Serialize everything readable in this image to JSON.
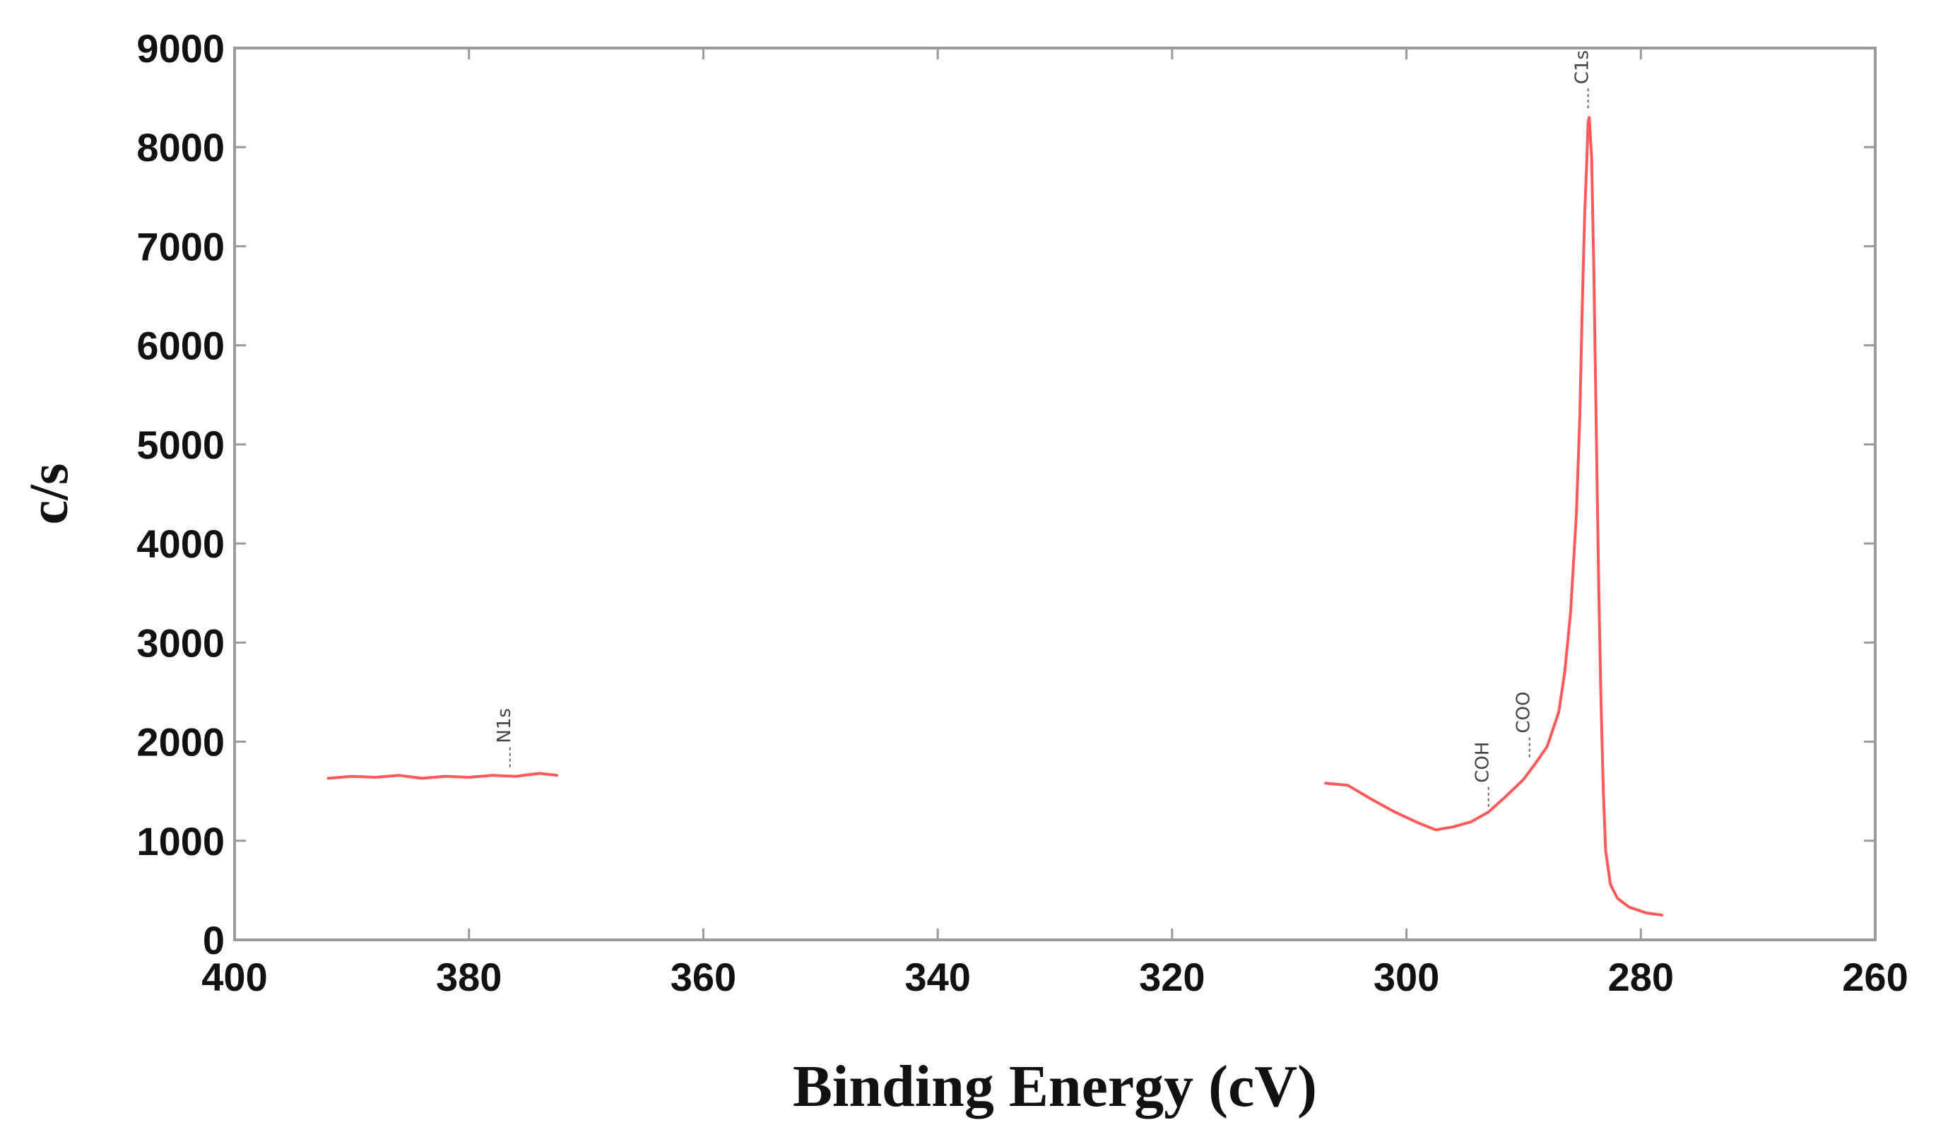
{
  "chart_data": {
    "type": "line",
    "title": "",
    "xlabel": "Binding Energy (cV)",
    "ylabel": "c/s",
    "xlim": [
      400,
      260
    ],
    "ylim": [
      0,
      9000
    ],
    "x_reversed": true,
    "grid": false,
    "x_ticks": [
      400,
      380,
      360,
      340,
      320,
      300,
      280,
      260
    ],
    "y_ticks": [
      0,
      1000,
      2000,
      3000,
      4000,
      5000,
      6000,
      7000,
      8000,
      9000
    ],
    "line_color": "#ff5a5a",
    "series": [
      {
        "segment": "low",
        "x": [
          392,
          390,
          388,
          386,
          384,
          382,
          380,
          378,
          376,
          374,
          372.5
        ],
        "y": [
          1630,
          1650,
          1640,
          1660,
          1630,
          1650,
          1640,
          1660,
          1650,
          1680,
          1660
        ]
      },
      {
        "segment": "high",
        "x": [
          306.9,
          305,
          303,
          301,
          299,
          297.5,
          296,
          294.5,
          293,
          291.5,
          290,
          289,
          288,
          287,
          286.5,
          286,
          285.5,
          285.2,
          285,
          284.8,
          284.6,
          284.5,
          284.4,
          284.2,
          284,
          283.8,
          283.6,
          283.4,
          283.2,
          283,
          282.6,
          282,
          281,
          279.5,
          278.2
        ],
        "y": [
          1580,
          1560,
          1420,
          1290,
          1180,
          1110,
          1140,
          1190,
          1290,
          1450,
          1620,
          1780,
          1950,
          2300,
          2700,
          3300,
          4300,
          5300,
          6400,
          7300,
          7900,
          8250,
          8300,
          7900,
          6700,
          5100,
          3600,
          2400,
          1500,
          900,
          560,
          420,
          330,
          270,
          250
        ]
      }
    ],
    "annotations": [
      {
        "text": "N1s",
        "x": 376.5,
        "y": 1700
      },
      {
        "text": "C1s",
        "x": 284.5,
        "y": 8350
      },
      {
        "text": "COO",
        "x": 289.5,
        "y": 1800
      },
      {
        "text": "COH",
        "x": 293,
        "y": 1300
      }
    ]
  }
}
